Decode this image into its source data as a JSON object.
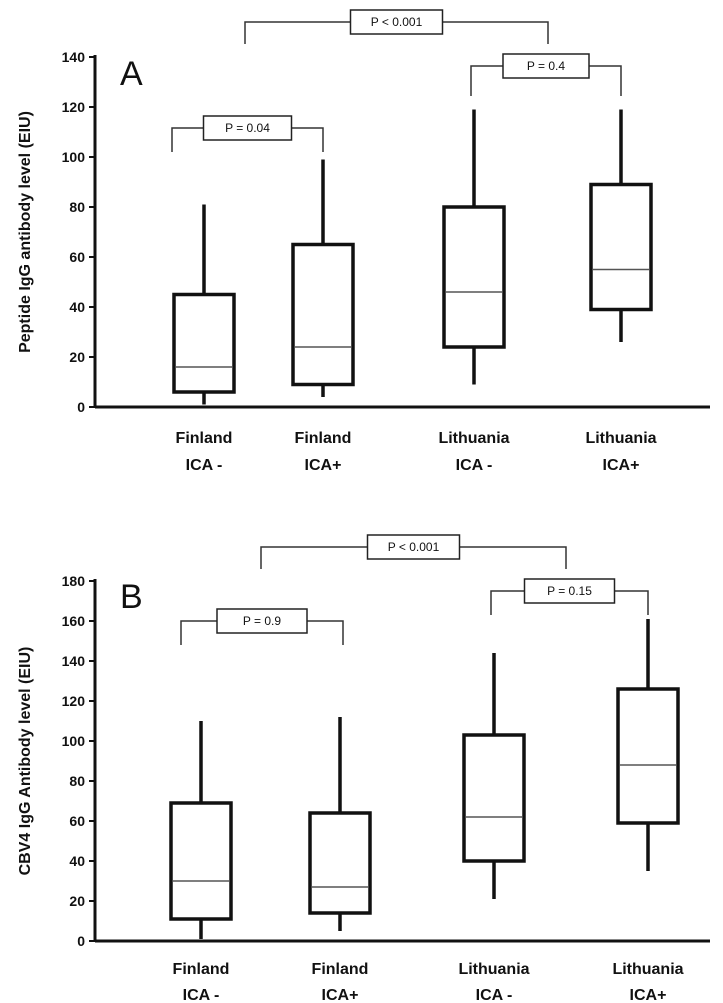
{
  "chart_data": [
    {
      "type": "box",
      "panel_label": "A",
      "ylabel": "Peptide IgG antibody level (EIU)",
      "ylim": [
        0,
        140
      ],
      "yticks": [
        0,
        20,
        40,
        60,
        80,
        100,
        120,
        140
      ],
      "categories": [
        "Finland\nICA -",
        "Finland\nICA+",
        "Lithuania\nICA -",
        "Lithuania\nICA+"
      ],
      "category_lines": [
        [
          "Finland",
          "ICA -"
        ],
        [
          "Finland",
          "ICA+"
        ],
        [
          "Lithuania",
          "ICA -"
        ],
        [
          "Lithuania",
          "ICA+"
        ]
      ],
      "boxes": [
        {
          "min": 1,
          "q1": 6,
          "median": 16,
          "q3": 45,
          "max": 81
        },
        {
          "min": 4,
          "q1": 9,
          "median": 24,
          "q3": 65,
          "max": 99
        },
        {
          "min": 9,
          "q1": 24,
          "median": 46,
          "q3": 80,
          "max": 119
        },
        {
          "min": 26,
          "q1": 39,
          "median": 55,
          "q3": 89,
          "max": 119
        }
      ],
      "comparisons": [
        {
          "from": 0,
          "to": 1,
          "label": "P = 0.04"
        },
        {
          "from": 2,
          "to": 3,
          "label": "P = 0.4"
        },
        {
          "from": "0-1",
          "to": "2-3",
          "label": "P < 0.001"
        }
      ]
    },
    {
      "type": "box",
      "panel_label": "B",
      "ylabel": "CBV4 IgG Antibody level (EIU)",
      "ylim": [
        0,
        180
      ],
      "yticks": [
        0,
        20,
        40,
        60,
        80,
        100,
        120,
        140,
        160,
        180
      ],
      "categories": [
        "Finland\nICA -",
        "Finland\nICA+",
        "Lithuania\nICA -",
        "Lithuania\nICA+"
      ],
      "category_lines": [
        [
          "Finland",
          "ICA -"
        ],
        [
          "Finland",
          "ICA+"
        ],
        [
          "Lithuania",
          "ICA -"
        ],
        [
          "Lithuania",
          "ICA+"
        ]
      ],
      "boxes": [
        {
          "min": 1,
          "q1": 11,
          "median": 30,
          "q3": 69,
          "max": 110
        },
        {
          "min": 5,
          "q1": 14,
          "median": 27,
          "q3": 64,
          "max": 112
        },
        {
          "min": 21,
          "q1": 40,
          "median": 62,
          "q3": 103,
          "max": 144
        },
        {
          "min": 35,
          "q1": 59,
          "median": 88,
          "q3": 126,
          "max": 161
        }
      ],
      "comparisons": [
        {
          "from": 0,
          "to": 1,
          "label": "P = 0.9"
        },
        {
          "from": 2,
          "to": 3,
          "label": "P = 0.15"
        },
        {
          "from": "0-1",
          "to": "2-3",
          "label": "P < 0.001"
        }
      ]
    }
  ]
}
